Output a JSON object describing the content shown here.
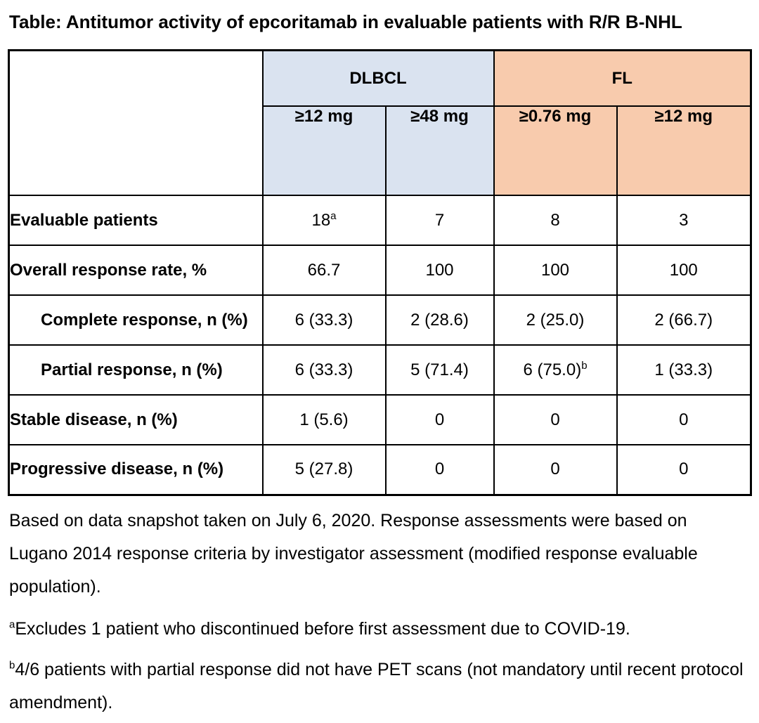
{
  "title": "Table: Antitumor activity of epcoritamab in evaluable patients with R/R B-NHL",
  "table": {
    "groups": [
      {
        "label": "DLBCL",
        "color": "#dae3f0",
        "doses": [
          "≥12 mg",
          "≥48 mg"
        ]
      },
      {
        "label": "FL",
        "color": "#f8cbad",
        "doses": [
          "≥0.76 mg",
          "≥12 mg"
        ]
      }
    ],
    "rows": [
      {
        "label": "Evaluable patients",
        "indent": false,
        "values": [
          {
            "text": "18",
            "sup": "a"
          },
          {
            "text": "7"
          },
          {
            "text": "8"
          },
          {
            "text": "3"
          }
        ]
      },
      {
        "label": "Overall response rate, %",
        "indent": false,
        "values": [
          {
            "text": "66.7"
          },
          {
            "text": "100"
          },
          {
            "text": "100"
          },
          {
            "text": "100"
          }
        ]
      },
      {
        "label": "Complete response, n (%)",
        "indent": true,
        "values": [
          {
            "text": "6 (33.3)"
          },
          {
            "text": "2 (28.6)"
          },
          {
            "text": "2 (25.0)"
          },
          {
            "text": "2 (66.7)"
          }
        ]
      },
      {
        "label": "Partial response, n (%)",
        "indent": true,
        "values": [
          {
            "text": "6 (33.3)"
          },
          {
            "text": "5 (71.4)"
          },
          {
            "text": "6 (75.0)",
            "sup": "b"
          },
          {
            "text": "1 (33.3)"
          }
        ]
      },
      {
        "label": "Stable disease, n (%)",
        "indent": false,
        "values": [
          {
            "text": "1 (5.6)"
          },
          {
            "text": "0"
          },
          {
            "text": "0"
          },
          {
            "text": "0"
          }
        ]
      },
      {
        "label": "Progressive disease, n (%)",
        "indent": false,
        "values": [
          {
            "text": "5 (27.8)"
          },
          {
            "text": "0"
          },
          {
            "text": "0"
          },
          {
            "text": "0"
          }
        ]
      }
    ]
  },
  "footnotes": {
    "general": "Based on data snapshot taken on July 6, 2020. Response assessments were based on Lugano 2014 response criteria by investigator assessment (modified response evaluable population).",
    "a": {
      "marker": "a",
      "text": "Excludes 1 patient who discontinued before first assessment due to COVID-19."
    },
    "b": {
      "marker": "b",
      "text": "4/6 patients with partial response did not have PET scans (not mandatory until recent protocol amendment)."
    }
  },
  "colors": {
    "dlbcl_header": "#dae3f0",
    "fl_header": "#f8cbad",
    "border": "#000000",
    "text": "#000000"
  }
}
